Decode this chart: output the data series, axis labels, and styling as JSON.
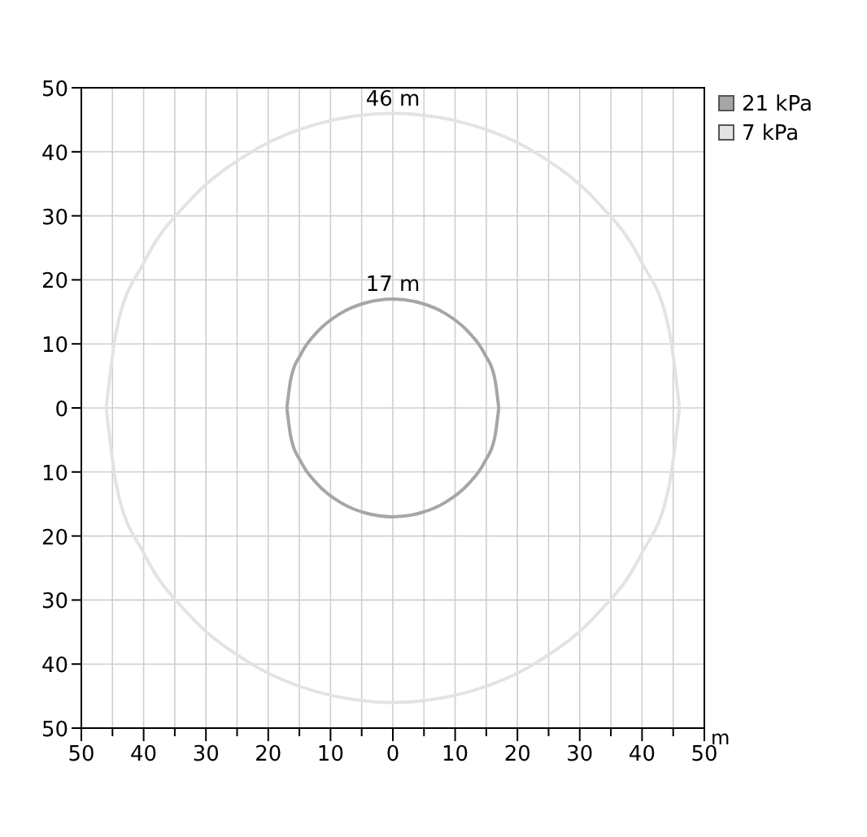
{
  "chart_data": {
    "type": "line",
    "xlabel": "m",
    "xlim": [
      -50,
      50
    ],
    "ylim": [
      -50,
      50
    ],
    "xticks": [
      {
        "value": -50,
        "label": "50"
      },
      {
        "value": -45,
        "label": null
      },
      {
        "value": -40,
        "label": "40"
      },
      {
        "value": -35,
        "label": null
      },
      {
        "value": -30,
        "label": "30"
      },
      {
        "value": -25,
        "label": null
      },
      {
        "value": -20,
        "label": "20"
      },
      {
        "value": -15,
        "label": null
      },
      {
        "value": -10,
        "label": "10"
      },
      {
        "value": -5,
        "label": null
      },
      0,
      {
        "value": 5,
        "label": null
      },
      10,
      {
        "value": 15,
        "label": null
      },
      20,
      {
        "value": 25,
        "label": null
      },
      30,
      {
        "value": 35,
        "label": null
      },
      40,
      {
        "value": 45,
        "label": null
      },
      50
    ],
    "yticks": [
      {
        "value": -50,
        "label": "50"
      },
      {
        "value": -40,
        "label": "40"
      },
      {
        "value": -30,
        "label": "30"
      },
      {
        "value": -20,
        "label": "20"
      },
      {
        "value": -10,
        "label": "10"
      },
      0,
      10,
      20,
      30,
      40,
      50
    ],
    "grid": true,
    "legend": "top right",
    "marker": "none",
    "line_style": "solid",
    "series": [
      {
        "name": "21 kPa",
        "color": "#a6a6a6",
        "x": [
          -17,
          -16.4,
          -14.7,
          -12,
          -8.5,
          -4.4,
          0,
          4.4,
          8.5,
          12,
          14.7,
          16.4,
          17,
          null,
          -17,
          -16.4,
          -14.7,
          -12,
          -8.5,
          -4.4,
          0,
          4.4,
          8.5,
          12,
          14.7,
          16.4,
          17
        ],
        "values": [
          0,
          4.4,
          8.5,
          12,
          14.7,
          16.4,
          17,
          16.4,
          14.7,
          12,
          8.5,
          4.4,
          0,
          null,
          0,
          -4.4,
          -8.5,
          -12,
          -14.7,
          -16.4,
          -17,
          -16.4,
          -14.7,
          -12,
          -8.5,
          -4.4,
          0
        ]
      },
      {
        "name": "7 kPa",
        "color": "#e3e3e3",
        "x": [
          -46,
          -44.4,
          -39.8,
          -32.5,
          -23,
          -11.9,
          0,
          11.9,
          23,
          32.5,
          39.8,
          44.4,
          46,
          null,
          -46,
          -44.4,
          -39.8,
          -32.5,
          -23,
          -11.9,
          0,
          11.9,
          23,
          32.5,
          39.8,
          44.4,
          46
        ],
        "values": [
          0,
          11.9,
          23,
          32.5,
          39.8,
          44.4,
          46,
          44.4,
          39.8,
          32.5,
          23,
          11.9,
          0,
          null,
          0,
          -11.9,
          -23,
          -32.5,
          -39.8,
          -44.4,
          -46,
          -44.4,
          -39.8,
          -32.5,
          -23,
          -11.9,
          0
        ]
      }
    ],
    "annotations": [
      "46 m",
      "17 m"
    ]
  }
}
